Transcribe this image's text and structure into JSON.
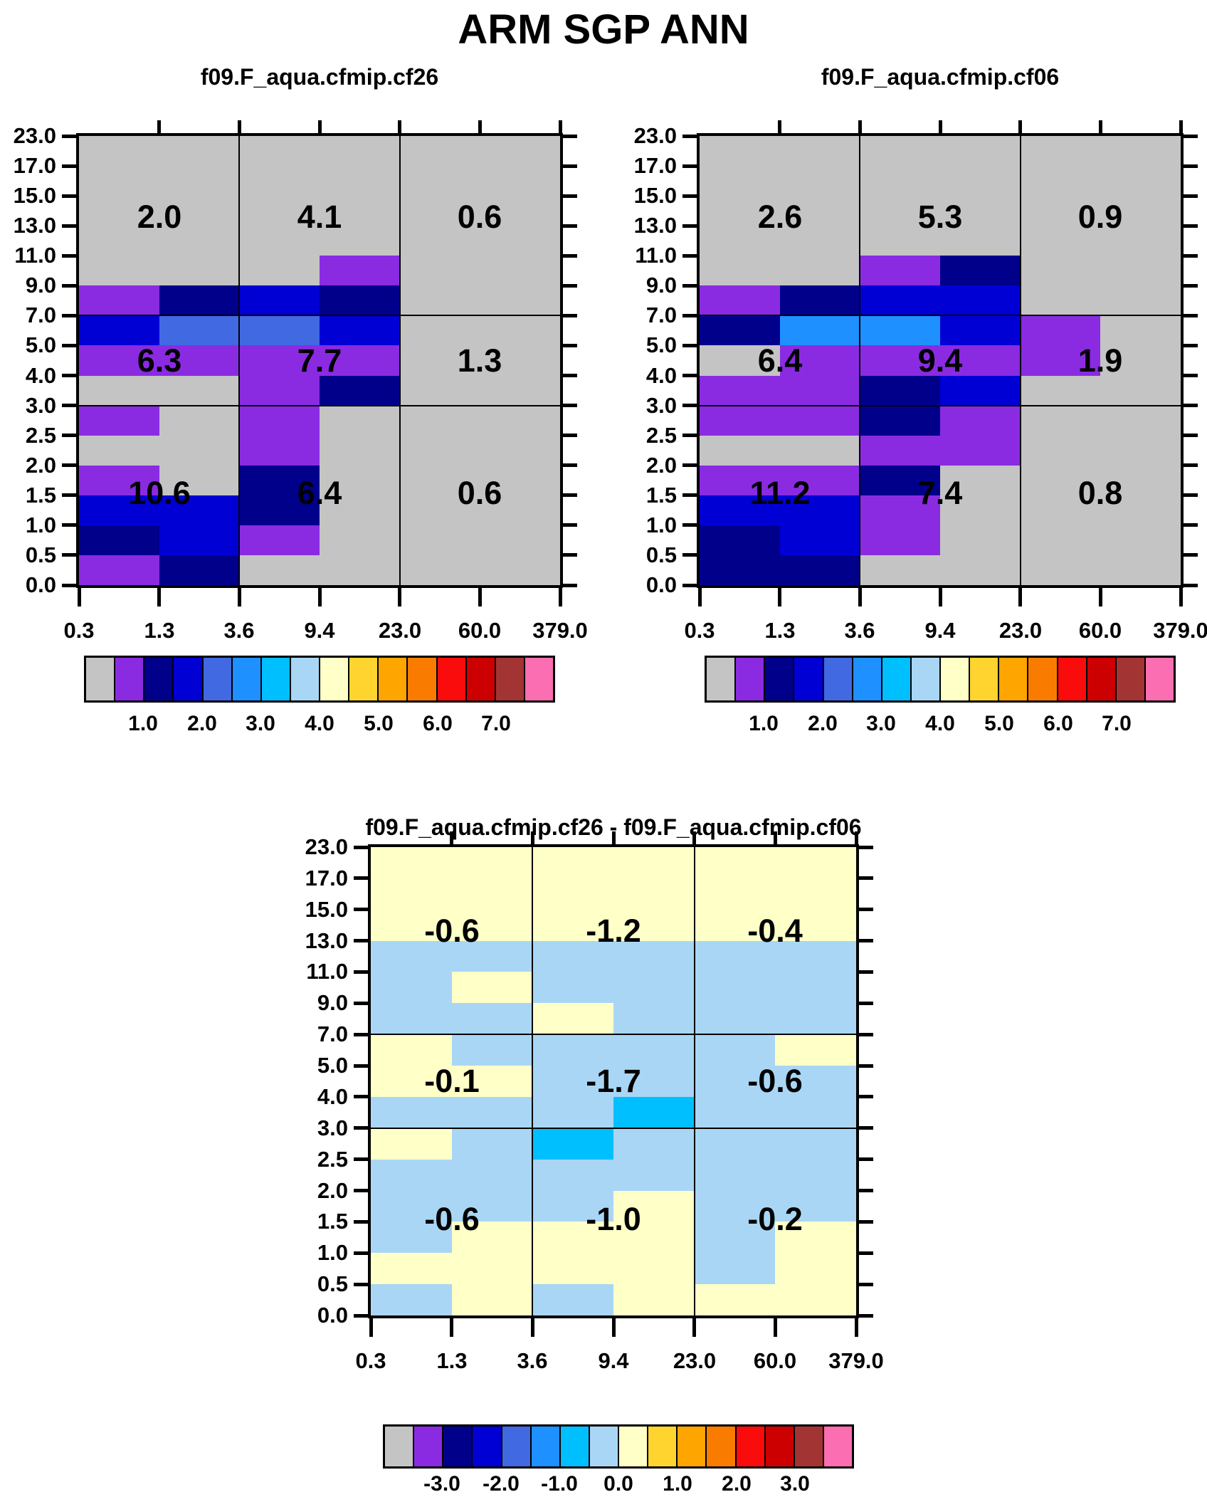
{
  "figure": {
    "title": "ARM SGP ANN"
  },
  "palette": {
    "G": "#C4C4C4",
    "P": "#8A2BE2",
    "N": "#00008B",
    "B": "#0000D5",
    "R": "#4169E1",
    "D": "#1E90FF",
    "C": "#00BFFF",
    "L": "#A9D6F5",
    "Y": "#FFFFC8",
    "GO": "#FFD42E",
    "O": "#FFA500",
    "DO": "#F97C00",
    "RE": "#FA0C0C",
    "DR": "#CC0000",
    "BR": "#A33434",
    "PK": "#FB6EB2"
  },
  "colorbar": {
    "colors": [
      "G",
      "P",
      "N",
      "B",
      "R",
      "D",
      "C",
      "L",
      "Y",
      "GO",
      "O",
      "DO",
      "RE",
      "DR",
      "BR",
      "PK"
    ]
  },
  "axes": {
    "x_tick_labels": [
      "0.3",
      "1.3",
      "3.6",
      "9.4",
      "23.0",
      "60.0",
      "379.0"
    ],
    "y_tick_labels": [
      "23.0",
      "17.0",
      "15.0",
      "13.0",
      "11.0",
      "9.0",
      "7.0",
      "5.0",
      "4.0",
      "3.0",
      "2.5",
      "2.0",
      "1.5",
      "1.0",
      "0.5",
      "0.0"
    ]
  },
  "chart_data": {
    "type": "heatmap",
    "suptitle": "ARM SGP ANN",
    "x_bin_edges": [
      0.3,
      1.3,
      3.6,
      9.4,
      23.0,
      60.0,
      379.0
    ],
    "y_bin_edges": [
      0.0,
      0.5,
      1.0,
      1.5,
      2.0,
      2.5,
      3.0,
      4.0,
      5.0,
      7.0,
      9.0,
      11.0,
      13.0,
      15.0,
      17.0,
      23.0
    ],
    "grid_note": "cell color codes listed top row (17-23) to bottom row (0-0.5), 6 columns left to right; codes map to palette",
    "panels": [
      {
        "title": "f09.F_aqua.cfmip.cf26",
        "block_values": [
          [
            2.0,
            4.1,
            0.6
          ],
          [
            6.3,
            7.7,
            1.3
          ],
          [
            10.6,
            6.4,
            0.6
          ]
        ],
        "block_labels": [
          [
            "2.0",
            "4.1",
            "0.6"
          ],
          [
            "6.3",
            "7.7",
            "1.3"
          ],
          [
            "10.6",
            "6.4",
            "0.6"
          ]
        ],
        "cells": [
          "GGGGGG",
          "GGGGGG",
          "GGGGGG",
          "GGGGGG",
          "GGGPGG",
          "PNBNGG",
          "BRRBGG",
          "PPPPGG",
          "GGPNGG",
          "PGPGGG",
          "GGPGGG",
          "PGNGGG",
          "BBNGGG",
          "NBPGGG",
          "PNGGGG"
        ],
        "colorbar_labels": [
          "1.0",
          "2.0",
          "3.0",
          "4.0",
          "5.0",
          "6.0",
          "7.0"
        ]
      },
      {
        "title": "f09.F_aqua.cfmip.cf06",
        "block_values": [
          [
            2.6,
            5.3,
            0.9
          ],
          [
            6.4,
            9.4,
            1.9
          ],
          [
            11.2,
            7.4,
            0.8
          ]
        ],
        "block_labels": [
          [
            "2.6",
            "5.3",
            "0.9"
          ],
          [
            "6.4",
            "9.4",
            "1.9"
          ],
          [
            "11.2",
            "7.4",
            "0.8"
          ]
        ],
        "cells": [
          "GGGGGG",
          "GGGGGG",
          "GGGGGG",
          "GGGGGG",
          "GGPNGG",
          "PNBBGG",
          "NDDBPG",
          "GPPPPG",
          "PPNBGG",
          "PPNPGG",
          "GGPPGG",
          "PPNGGG",
          "BBPGGG",
          "NBPGGG",
          "NNGGGG"
        ],
        "colorbar_labels": [
          "1.0",
          "2.0",
          "3.0",
          "4.0",
          "5.0",
          "6.0",
          "7.0"
        ]
      },
      {
        "title": "f09.F_aqua.cfmip.cf26 - f09.F_aqua.cfmip.cf06",
        "block_values": [
          [
            -0.6,
            -1.2,
            -0.4
          ],
          [
            -0.1,
            -1.7,
            -0.6
          ],
          [
            -0.6,
            -1.0,
            -0.2
          ]
        ],
        "block_labels": [
          [
            "-0.6",
            "-1.2",
            "-0.4"
          ],
          [
            "-0.1",
            "-1.7",
            "-0.6"
          ],
          [
            "-0.6",
            "-1.0",
            "-0.2"
          ]
        ],
        "cells": [
          "YYYYYY",
          "YYYYYY",
          "YYYYYY",
          "LLLLLL",
          "LYLLLL",
          "LLYLLL",
          "YLLLLY",
          "YYLLLL",
          "LLLCLL",
          "YLCLLL",
          "LLLLLL",
          "LLLYLL",
          "LYYYLY",
          "YYYYLY",
          "LYLYYY"
        ],
        "colorbar_labels": [
          "-3.0",
          "-2.0",
          "-1.0",
          "0.0",
          "1.0",
          "2.0",
          "3.0"
        ]
      }
    ]
  }
}
